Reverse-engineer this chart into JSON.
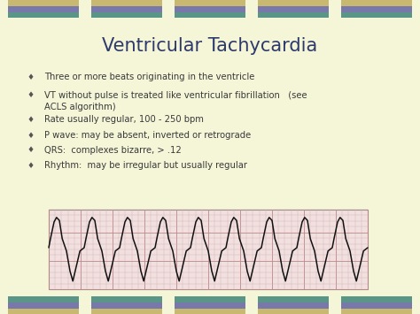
{
  "title": "Ventricular Tachycardia",
  "title_color": "#2d3a6b",
  "background_color": "#f5f5d8",
  "bullet_points": [
    "Three or more beats originating in the ventricle",
    "VT without pulse is treated like ventricular fibrillation   (see\nACLS algorithm)",
    "Rate usually regular, 100 - 250 bpm",
    "P wave: may be absent, inverted or retrograde",
    "QRS:  complexes bizarre, > .12",
    "Rhythm:  may be irregular but usually regular"
  ],
  "text_color": "#3a3a3a",
  "header_stripe1": "#5a9688",
  "header_stripe2": "#7878aa",
  "header_stripe3": "#c8b870",
  "ecg_line_color": "#111111",
  "ecg_bg_color": "#f2e0e0",
  "ecg_grid_minor": "#ccaaaa",
  "ecg_grid_major": "#bb8888",
  "ecg_border_color": "#998888"
}
